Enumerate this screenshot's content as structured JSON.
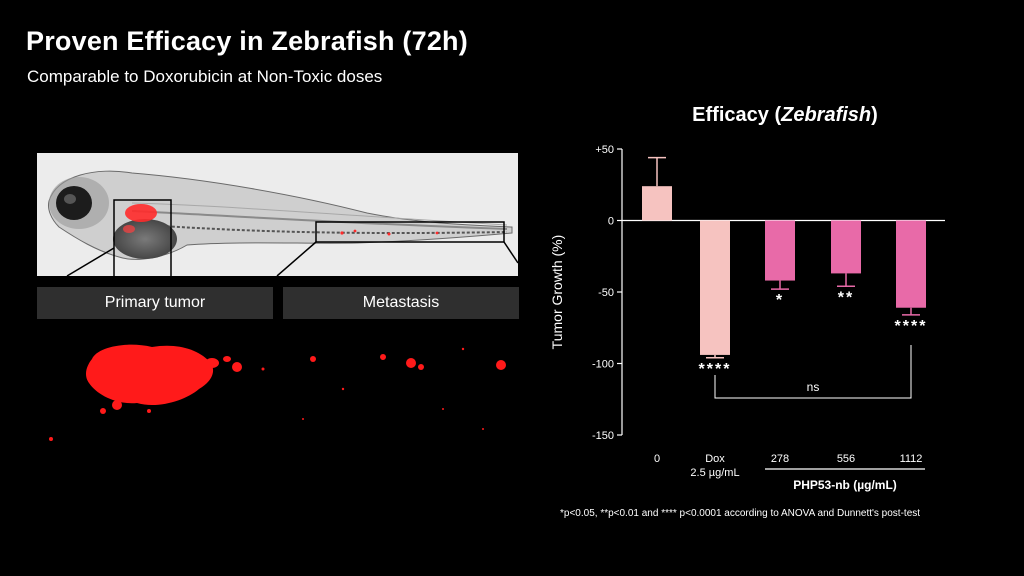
{
  "slide": {
    "title": "Proven Efficacy in Zebrafish (72h)",
    "subtitle": "Comparable to Doxorubicin at Non-Toxic doses",
    "footnote": "*p<0.05, **p<0.01 and **** p<0.0001 according to ANOVA and Dunnett's post-test"
  },
  "images": {
    "primary_label": "Primary tumor",
    "metastasis_label": "Metastasis"
  },
  "colors": {
    "control_bar": "#f6c3c0",
    "treated_bar": "#e86aa8",
    "fluorescence": "#ff1a1a"
  },
  "chart_data": {
    "type": "bar",
    "title_plain": "Efficacy (",
    "title_italic": "Zebrafish",
    "title_end": ")",
    "ylabel": "Tumor Growth (%)",
    "ylim": [
      -150,
      50
    ],
    "yticks": [
      50,
      0,
      -50,
      -100,
      -150
    ],
    "ytick_labels": [
      "+50",
      "0",
      "-50",
      "-100",
      "-150"
    ],
    "categories": [
      "0",
      "Dox",
      "278",
      "556",
      "1112"
    ],
    "category_sublabels": [
      "",
      "2.5 µg/mL",
      "",
      "",
      ""
    ],
    "values": [
      24,
      -94,
      -42,
      -37,
      -61
    ],
    "errors": [
      20,
      2,
      6,
      9,
      5
    ],
    "significance": [
      "",
      "****",
      "*",
      "**",
      "****"
    ],
    "bar_colors": [
      "control",
      "control",
      "treated",
      "treated",
      "treated"
    ],
    "group_label": "PHP53-nb (µg/mL)",
    "comparison_label": "ns",
    "comparison_between": [
      "Dox",
      "1112"
    ]
  }
}
